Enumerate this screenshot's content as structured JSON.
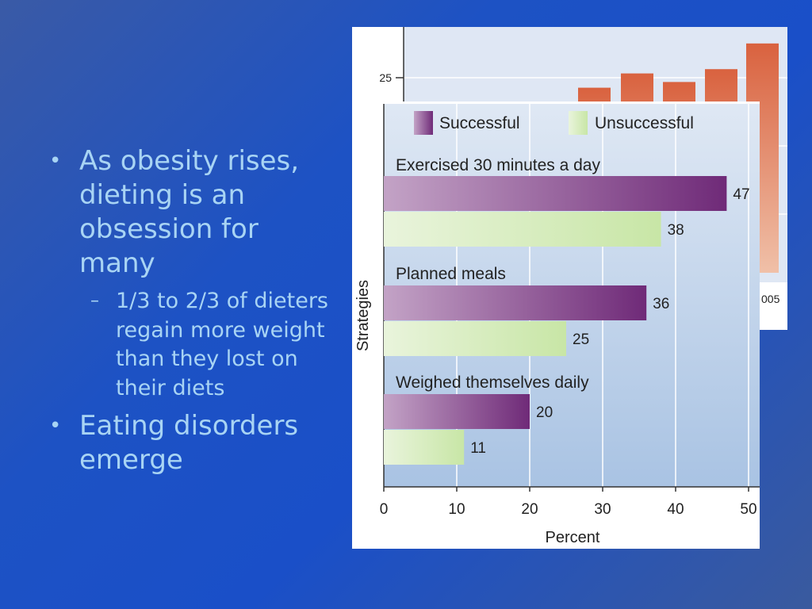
{
  "slide": {
    "bullets": [
      {
        "text": "As obesity rises, dieting is an obsession for many",
        "sub": [
          "1/3 to 2/3 of dieters regain more weight than they lost on their diets"
        ]
      },
      {
        "text": "Eating disorders emerge"
      }
    ]
  },
  "colors": {
    "successful": "#6f2a78",
    "unsuccessful": "#c8e6a6",
    "background_bar": "#d9623f"
  },
  "chart_data": [
    {
      "type": "bar",
      "orientation": "vertical",
      "note": "partially hidden background chart",
      "y_ticks": [
        "25"
      ],
      "visible_tick_fragment": "005",
      "values_partial": [
        24.3,
        25.3,
        24.7,
        25.6,
        27.4
      ]
    },
    {
      "type": "bar",
      "orientation": "horizontal",
      "categories": [
        "Exercised 30 minutes a day",
        "Planned meals",
        "Weighed themselves daily"
      ],
      "series": [
        {
          "name": "Successful",
          "values": [
            47,
            36,
            20
          ]
        },
        {
          "name": "Unsuccessful",
          "values": [
            38,
            25,
            11
          ]
        }
      ],
      "xlabel": "Percent",
      "ylabel": "Strategies",
      "xlim": [
        0,
        52
      ],
      "x_ticks": [
        "0",
        "10",
        "20",
        "30",
        "40",
        "50"
      ],
      "grid": true,
      "legend": "top"
    }
  ]
}
